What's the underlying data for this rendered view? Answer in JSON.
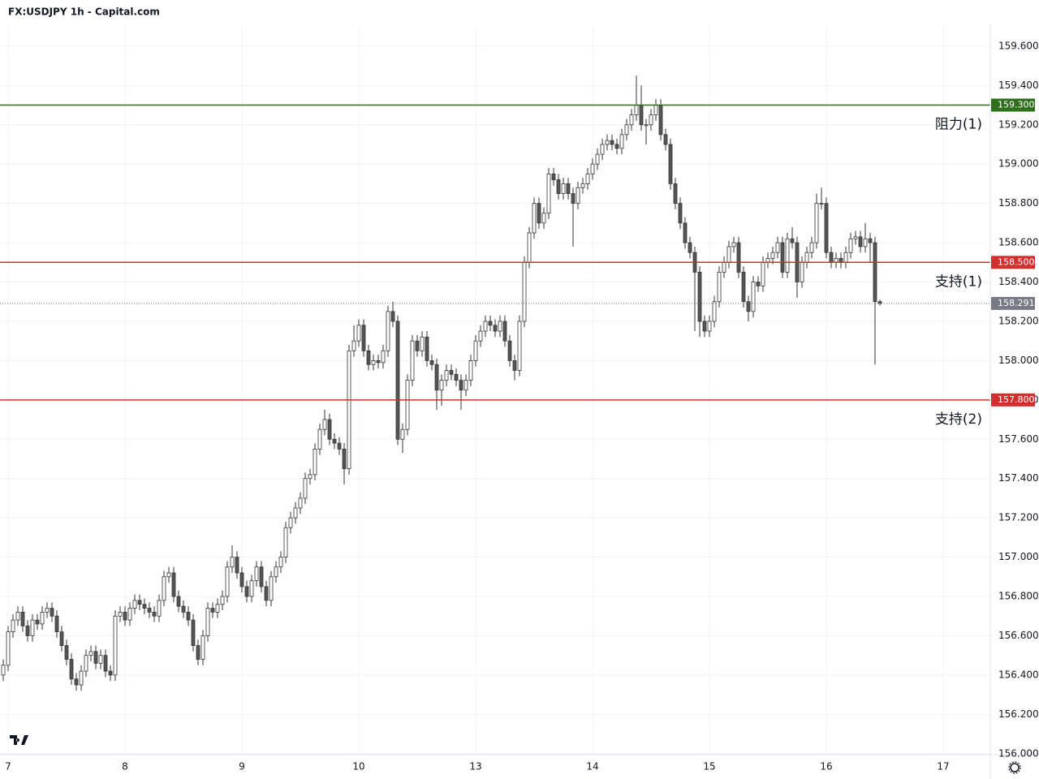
{
  "chart_data": {
    "type": "candlestick",
    "title": "FX:USDJPY 1h - Capital.com",
    "xlim": [
      -1.667,
      201.667
    ],
    "xticks": [
      {
        "value": 0,
        "label": "7"
      },
      {
        "value": 24,
        "label": "8"
      },
      {
        "value": 48,
        "label": "9"
      },
      {
        "value": 72,
        "label": "10"
      },
      {
        "value": 96,
        "label": "13"
      },
      {
        "value": 120,
        "label": "14"
      },
      {
        "value": 144,
        "label": "15"
      },
      {
        "value": 168,
        "label": "16"
      },
      {
        "value": 192,
        "label": "17"
      }
    ],
    "ylim": [
      155.995,
      159.711
    ],
    "yticks": [
      {
        "value": 156.0,
        "label": "156.000"
      },
      {
        "value": 156.2,
        "label": "156.200"
      },
      {
        "value": 156.4,
        "label": "156.400"
      },
      {
        "value": 156.6,
        "label": "156.600"
      },
      {
        "value": 156.8,
        "label": "156.800"
      },
      {
        "value": 157.0,
        "label": "157.000"
      },
      {
        "value": 157.2,
        "label": "157.200"
      },
      {
        "value": 157.4,
        "label": "157.400"
      },
      {
        "value": 157.6,
        "label": "157.600"
      },
      {
        "value": 157.8,
        "label": "157.800"
      },
      {
        "value": 158.0,
        "label": "158.000"
      },
      {
        "value": 158.2,
        "label": "158.200"
      },
      {
        "value": 158.4,
        "label": "158.400"
      },
      {
        "value": 158.6,
        "label": "158.600"
      },
      {
        "value": 158.8,
        "label": "158.800"
      },
      {
        "value": 159.0,
        "label": "159.000"
      },
      {
        "value": 159.2,
        "label": "159.200"
      },
      {
        "value": 159.4,
        "label": "159.400"
      },
      {
        "value": 159.6,
        "label": "159.600"
      }
    ],
    "grid": true,
    "up_color": "#ffffff",
    "down_color": "#555555",
    "edge_color": "#333333",
    "levels": [
      {
        "name": "阻力(1)",
        "value": 159.3,
        "label": "159.300",
        "color": "#2f6e1c"
      },
      {
        "name": "支持(1)",
        "value": 158.5,
        "label": "158.500",
        "color": "#d32f2f"
      },
      {
        "name": "支持(2)",
        "value": 157.8,
        "label": "157.800",
        "color": "#d32f2f"
      }
    ],
    "last_price": 158.291,
    "last_price_color": "#787b86",
    "x": [
      -1,
      0,
      1,
      2,
      3,
      4,
      5,
      6,
      7,
      8,
      9,
      10,
      11,
      12,
      13,
      14,
      15,
      16,
      17,
      18,
      19,
      20,
      21,
      22,
      23,
      24,
      25,
      26,
      27,
      28,
      29,
      30,
      31,
      32,
      33,
      34,
      35,
      36,
      37,
      38,
      39,
      40,
      41,
      42,
      43,
      44,
      45,
      46,
      47,
      48,
      49,
      50,
      51,
      52,
      53,
      54,
      55,
      56,
      57,
      58,
      59,
      60,
      61,
      62,
      63,
      64,
      65,
      66,
      67,
      68,
      69,
      70,
      71,
      72,
      73,
      74,
      75,
      76,
      77,
      78,
      79,
      80,
      81,
      82,
      83,
      84,
      85,
      86,
      87,
      88,
      89,
      90,
      91,
      92,
      93,
      94,
      95,
      96,
      97,
      98,
      99,
      100,
      101,
      102,
      103,
      104,
      105,
      106,
      107,
      108,
      109,
      110,
      111,
      112,
      113,
      114,
      115,
      116,
      117,
      118,
      119,
      120,
      121,
      122,
      123,
      124,
      125,
      126,
      127,
      128,
      129,
      130,
      131,
      132,
      133,
      134,
      135,
      136,
      137,
      138,
      139,
      140,
      141,
      142,
      143,
      144,
      145,
      146,
      147,
      148,
      149,
      150,
      151,
      152,
      153,
      154,
      155,
      156,
      157,
      158,
      159,
      160,
      161,
      162,
      163,
      164,
      165,
      166,
      167,
      168,
      169,
      170,
      171,
      172,
      173,
      174,
      175,
      176,
      177,
      178,
      179
    ],
    "open": [
      156.4,
      156.45,
      156.62,
      156.68,
      156.72,
      156.65,
      156.6,
      156.68,
      156.66,
      156.72,
      156.74,
      156.7,
      156.62,
      156.55,
      156.48,
      156.38,
      156.35,
      156.42,
      156.5,
      156.52,
      156.46,
      156.5,
      156.42,
      156.4,
      156.7,
      156.72,
      156.68,
      156.74,
      156.78,
      156.76,
      156.74,
      156.72,
      156.7,
      156.78,
      156.9,
      156.92,
      156.8,
      156.75,
      156.72,
      156.68,
      156.55,
      156.48,
      156.6,
      156.74,
      156.72,
      156.76,
      156.8,
      156.95,
      157.0,
      156.92,
      156.85,
      156.8,
      156.88,
      156.95,
      156.85,
      156.78,
      156.9,
      156.95,
      157.0,
      157.15,
      157.2,
      157.25,
      157.3,
      157.4,
      157.42,
      157.55,
      157.65,
      157.7,
      157.6,
      157.58,
      157.55,
      157.45,
      158.05,
      158.1,
      158.18,
      158.05,
      157.98,
      158.0,
      157.99,
      158.05,
      158.25,
      158.2,
      157.6,
      157.65,
      157.9,
      158.1,
      158.05,
      158.12,
      158.0,
      157.98,
      157.85,
      157.9,
      157.95,
      157.93,
      157.9,
      157.85,
      157.9,
      158.0,
      158.1,
      158.15,
      158.2,
      158.18,
      158.15,
      158.2,
      158.1,
      158.0,
      157.95,
      158.2,
      158.5,
      158.65,
      158.8,
      158.7,
      158.75,
      158.95,
      158.92,
      158.85,
      158.9,
      158.85,
      158.8,
      158.88,
      158.9,
      158.95,
      159.0,
      159.05,
      159.1,
      159.12,
      159.1,
      159.08,
      159.15,
      159.2,
      159.25,
      159.3,
      159.2,
      159.2,
      159.25,
      159.3,
      159.15,
      159.1,
      158.9,
      158.8,
      158.7,
      158.6,
      158.55,
      158.45,
      158.2,
      158.15,
      158.2,
      158.3,
      158.45,
      158.5,
      158.58,
      158.6,
      158.45,
      158.3,
      158.25,
      158.4,
      158.38,
      158.5,
      158.52,
      158.55,
      158.6,
      158.45,
      158.62,
      158.6,
      158.4,
      158.5,
      158.55,
      158.6,
      158.8,
      158.8,
      158.55,
      158.5,
      158.52,
      158.5,
      158.55,
      158.62,
      158.63,
      158.58,
      158.62,
      158.6,
      158.3
    ],
    "high": [
      156.48,
      156.65,
      156.71,
      156.75,
      156.75,
      156.68,
      156.71,
      156.71,
      156.75,
      156.77,
      156.77,
      156.73,
      156.65,
      156.58,
      156.51,
      156.41,
      156.45,
      156.53,
      156.55,
      156.55,
      156.53,
      156.53,
      156.45,
      156.73,
      156.75,
      156.75,
      156.77,
      156.81,
      156.81,
      156.79,
      156.77,
      156.75,
      156.81,
      156.93,
      156.95,
      156.95,
      156.83,
      156.78,
      156.75,
      156.71,
      156.58,
      156.63,
      156.77,
      156.77,
      156.79,
      156.83,
      156.98,
      157.06,
      157.03,
      156.95,
      156.88,
      156.91,
      156.98,
      156.98,
      156.88,
      156.93,
      156.98,
      157.03,
      157.18,
      157.23,
      157.28,
      157.33,
      157.43,
      157.45,
      157.58,
      157.68,
      157.75,
      157.73,
      157.63,
      157.61,
      157.58,
      158.08,
      158.18,
      158.21,
      158.21,
      158.08,
      158.03,
      158.03,
      158.08,
      158.28,
      158.3,
      158.23,
      157.68,
      157.93,
      158.13,
      158.13,
      158.15,
      158.15,
      158.03,
      158.01,
      157.93,
      157.98,
      157.98,
      157.96,
      157.93,
      157.93,
      158.03,
      158.13,
      158.18,
      158.23,
      158.23,
      158.21,
      158.23,
      158.23,
      158.13,
      158.03,
      158.23,
      158.53,
      158.68,
      158.83,
      158.83,
      158.78,
      158.98,
      158.98,
      158.95,
      158.93,
      158.93,
      158.88,
      158.91,
      158.93,
      158.98,
      159.03,
      159.08,
      159.13,
      159.15,
      159.15,
      159.13,
      159.18,
      159.23,
      159.28,
      159.45,
      159.4,
      159.23,
      159.28,
      159.33,
      159.33,
      159.18,
      159.13,
      158.93,
      158.83,
      158.73,
      158.63,
      158.58,
      158.48,
      158.23,
      158.23,
      158.33,
      158.48,
      158.53,
      158.61,
      158.63,
      158.63,
      158.48,
      158.33,
      158.43,
      158.43,
      158.53,
      158.55,
      158.58,
      158.63,
      158.63,
      158.65,
      158.68,
      158.63,
      158.53,
      158.58,
      158.63,
      158.85,
      158.88,
      158.83,
      158.58,
      158.55,
      158.55,
      158.58,
      158.65,
      158.66,
      158.66,
      158.7,
      158.65,
      158.63,
      158.31
    ],
    "low": [
      156.37,
      156.42,
      156.59,
      156.65,
      156.62,
      156.57,
      156.57,
      156.63,
      156.63,
      156.69,
      156.67,
      156.59,
      156.52,
      156.45,
      156.35,
      156.32,
      156.32,
      156.39,
      156.47,
      156.43,
      156.43,
      156.39,
      156.37,
      156.37,
      156.67,
      156.65,
      156.65,
      156.71,
      156.73,
      156.71,
      156.69,
      156.67,
      156.67,
      156.75,
      156.87,
      156.77,
      156.72,
      156.69,
      156.65,
      156.52,
      156.45,
      156.45,
      156.57,
      156.69,
      156.69,
      156.73,
      156.77,
      156.92,
      156.89,
      156.82,
      156.77,
      156.77,
      156.85,
      156.82,
      156.75,
      156.75,
      156.87,
      156.92,
      156.97,
      157.12,
      157.17,
      157.22,
      157.27,
      157.37,
      157.39,
      157.52,
      157.62,
      157.57,
      157.55,
      157.52,
      157.37,
      157.42,
      158.02,
      158.07,
      158.02,
      157.95,
      157.95,
      157.96,
      157.96,
      158.02,
      158.17,
      157.57,
      157.53,
      157.62,
      157.87,
      158.02,
      158.02,
      157.97,
      157.95,
      157.75,
      157.77,
      157.87,
      157.9,
      157.87,
      157.75,
      157.82,
      157.87,
      157.97,
      158.07,
      158.12,
      158.15,
      158.12,
      158.12,
      158.07,
      157.97,
      157.9,
      157.92,
      158.17,
      158.47,
      158.62,
      158.67,
      158.67,
      158.72,
      158.89,
      158.82,
      158.82,
      158.82,
      158.58,
      158.77,
      158.85,
      158.87,
      158.92,
      158.97,
      159.02,
      159.07,
      159.07,
      159.05,
      159.05,
      159.12,
      159.17,
      159.22,
      159.17,
      159.1,
      159.17,
      159.22,
      159.12,
      159.07,
      158.87,
      158.77,
      158.67,
      158.57,
      158.52,
      158.15,
      158.12,
      158.12,
      158.12,
      158.17,
      158.27,
      158.42,
      158.47,
      158.55,
      158.42,
      158.27,
      158.2,
      158.22,
      158.35,
      158.35,
      158.47,
      158.49,
      158.52,
      158.42,
      158.42,
      158.57,
      158.32,
      158.37,
      158.47,
      158.52,
      158.57,
      158.77,
      158.52,
      158.47,
      158.47,
      158.47,
      158.47,
      158.52,
      158.59,
      158.55,
      158.55,
      158.5,
      157.98,
      158.28
    ],
    "close": [
      156.45,
      156.62,
      156.68,
      156.72,
      156.65,
      156.6,
      156.68,
      156.66,
      156.72,
      156.74,
      156.7,
      156.62,
      156.55,
      156.48,
      156.38,
      156.35,
      156.42,
      156.5,
      156.52,
      156.46,
      156.5,
      156.42,
      156.4,
      156.7,
      156.72,
      156.68,
      156.74,
      156.78,
      156.76,
      156.74,
      156.72,
      156.7,
      156.78,
      156.9,
      156.92,
      156.8,
      156.75,
      156.72,
      156.68,
      156.55,
      156.48,
      156.6,
      156.74,
      156.72,
      156.76,
      156.8,
      156.95,
      157.0,
      156.92,
      156.85,
      156.8,
      156.88,
      156.95,
      156.85,
      156.78,
      156.9,
      156.95,
      157.0,
      157.15,
      157.2,
      157.25,
      157.3,
      157.4,
      157.42,
      157.55,
      157.65,
      157.7,
      157.6,
      157.58,
      157.55,
      157.45,
      158.05,
      158.1,
      158.18,
      158.05,
      157.98,
      158.0,
      157.99,
      158.05,
      158.25,
      158.2,
      157.6,
      157.65,
      157.9,
      158.1,
      158.05,
      158.12,
      158.0,
      157.98,
      157.85,
      157.9,
      157.95,
      157.93,
      157.9,
      157.85,
      157.9,
      158.0,
      158.1,
      158.15,
      158.2,
      158.18,
      158.15,
      158.2,
      158.1,
      158.0,
      157.95,
      158.2,
      158.5,
      158.65,
      158.8,
      158.7,
      158.75,
      158.95,
      158.92,
      158.85,
      158.9,
      158.85,
      158.8,
      158.88,
      158.9,
      158.95,
      159.0,
      159.05,
      159.1,
      159.12,
      159.1,
      159.08,
      159.15,
      159.2,
      159.25,
      159.3,
      159.2,
      159.2,
      159.25,
      159.3,
      159.15,
      159.1,
      158.9,
      158.8,
      158.7,
      158.6,
      158.55,
      158.45,
      158.2,
      158.15,
      158.2,
      158.3,
      158.45,
      158.5,
      158.58,
      158.6,
      158.45,
      158.3,
      158.25,
      158.4,
      158.38,
      158.5,
      158.52,
      158.55,
      158.6,
      158.45,
      158.62,
      158.6,
      158.4,
      158.5,
      158.55,
      158.6,
      158.8,
      158.8,
      158.55,
      158.5,
      158.52,
      158.5,
      158.55,
      158.62,
      158.63,
      158.58,
      158.62,
      158.6,
      158.3,
      158.291
    ]
  }
}
